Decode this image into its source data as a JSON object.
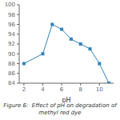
{
  "chart_data": {
    "type": "line",
    "caption": "Figure 6:  Effect of pH on degradation of methyl red dye",
    "xlabel": "pH",
    "x": [
      2,
      4,
      5,
      6,
      7,
      8,
      9,
      10,
      11
    ],
    "values": [
      88,
      90,
      96,
      95,
      93,
      92,
      91,
      88,
      84
    ],
    "xlim": [
      1.5,
      11.5
    ],
    "xticks": [
      2,
      4,
      6,
      8,
      10
    ],
    "ylim": [
      84,
      100
    ],
    "yticks": [
      84,
      86,
      88,
      90,
      92,
      94,
      96,
      98,
      100
    ],
    "marker": "square"
  }
}
